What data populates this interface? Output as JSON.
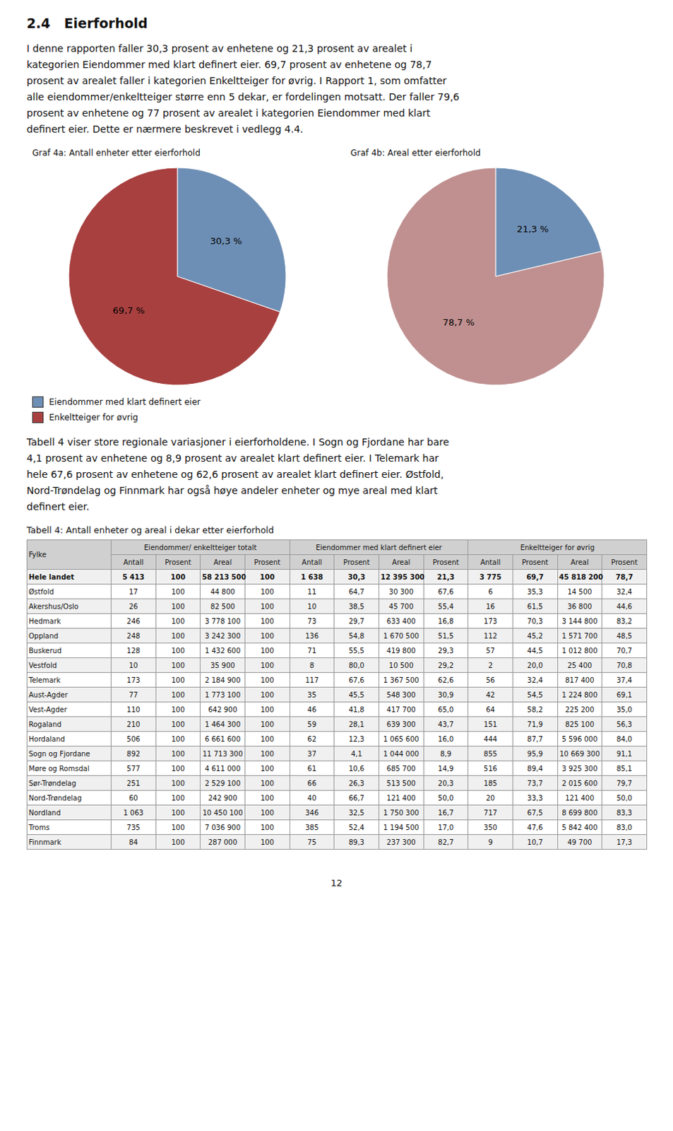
{
  "title": "2.4   Eierforhold",
  "intro_text": "I denne rapporten faller 30,3 prosent av enhetene og 21,3 prosent av arealet i\nkategorien Eiendommer med klart definert eier. 69,7 prosent av enhetene og 78,7\nprosent av arealet faller i kategorien Enkeltteiger for øvrig. I Rapport 1, som omfatter\nalle eiendommer/enkeltteiger større enn 5 dekar, er fordelingen motsatt. Der faller 79,6\nprosent av enhetene og 77 prosent av arealet i kategorien Eiendommer med klart\ndefinert eier. Dette er nærmere beskrevet i vedlegg 4.4.",
  "chart_data": [
    {
      "type": "pie",
      "title": "Graf 4a: Antall enheter etter eierforhold",
      "categories": [
        "Eiendommer med klart definert eier",
        "Enkeltteiger for øvrig"
      ],
      "values": [
        30.3,
        69.7
      ],
      "value_labels": [
        "30,3 %",
        "69,7 %"
      ],
      "colors": [
        "#6e8fb5",
        "#a84040"
      ],
      "data_labels": true,
      "legend": "lower left"
    },
    {
      "type": "pie",
      "title": "Graf 4b: Areal etter eierforhold",
      "categories": [
        "Eiendommer med klart definert eier",
        "Enkeltteiger for øvrig"
      ],
      "values": [
        21.3,
        78.7
      ],
      "value_labels": [
        "21,3 %",
        "78,7 %"
      ],
      "colors": [
        "#6e8fb5",
        "#c09090"
      ],
      "data_labels": true
    }
  ],
  "body_text": "Tabell 4 viser store regionale variasjoner i eierforholdene. I Sogn og Fjordane har bare\n4,1 prosent av enhetene og 8,9 prosent av arealet klart definert eier. I Telemark har\nhele 67,6 prosent av enhetene og 62,6 prosent av arealet klart definert eier. Østfold,\nNord-Trøndelag og Finnmark har også høye andeler enheter og mye areal med klart\ndefinert eier.",
  "table": {
    "title": "Tabell 4: Antall enheter og areal i dekar etter eierforhold",
    "stub_header": "Fylke",
    "group_headers": [
      "Eiendommer/ enkeltteiger totalt",
      "Eiendommer med klart definert eier",
      "Enkeltteiger for øvrig"
    ],
    "column_headers": [
      "Antall",
      "Prosent",
      "Areal",
      "Prosent",
      "Antall",
      "Prosent",
      "Areal",
      "Prosent",
      "Antall",
      "Prosent",
      "Areal",
      "Prosent"
    ],
    "rows": [
      [
        "Hele landet",
        "5 413",
        "100",
        "58 213 500",
        "100",
        "1 638",
        "30,3",
        "12 395 300",
        "21,3",
        "3 775",
        "69,7",
        "45 818 200",
        "78,7"
      ],
      [
        "Østfold",
        "17",
        "100",
        "44 800",
        "100",
        "11",
        "64,7",
        "30 300",
        "67,6",
        "6",
        "35,3",
        "14 500",
        "32,4"
      ],
      [
        "Akershus/Oslo",
        "26",
        "100",
        "82 500",
        "100",
        "10",
        "38,5",
        "45 700",
        "55,4",
        "16",
        "61,5",
        "36 800",
        "44,6"
      ],
      [
        "Hedmark",
        "246",
        "100",
        "3 778 100",
        "100",
        "73",
        "29,7",
        "633 400",
        "16,8",
        "173",
        "70,3",
        "3 144 800",
        "83,2"
      ],
      [
        "Oppland",
        "248",
        "100",
        "3 242 300",
        "100",
        "136",
        "54,8",
        "1 670 500",
        "51,5",
        "112",
        "45,2",
        "1 571 700",
        "48,5"
      ],
      [
        "Buskerud",
        "128",
        "100",
        "1 432 600",
        "100",
        "71",
        "55,5",
        "419 800",
        "29,3",
        "57",
        "44,5",
        "1 012 800",
        "70,7"
      ],
      [
        "Vestfold",
        "10",
        "100",
        "35 900",
        "100",
        "8",
        "80,0",
        "10 500",
        "29,2",
        "2",
        "20,0",
        "25 400",
        "70,8"
      ],
      [
        "Telemark",
        "173",
        "100",
        "2 184 900",
        "100",
        "117",
        "67,6",
        "1 367 500",
        "62,6",
        "56",
        "32,4",
        "817 400",
        "37,4"
      ],
      [
        "Aust-Agder",
        "77",
        "100",
        "1 773 100",
        "100",
        "35",
        "45,5",
        "548 300",
        "30,9",
        "42",
        "54,5",
        "1 224 800",
        "69,1"
      ],
      [
        "Vest-Agder",
        "110",
        "100",
        "642 900",
        "100",
        "46",
        "41,8",
        "417 700",
        "65,0",
        "64",
        "58,2",
        "225 200",
        "35,0"
      ],
      [
        "Rogaland",
        "210",
        "100",
        "1 464 300",
        "100",
        "59",
        "28,1",
        "639 300",
        "43,7",
        "151",
        "71,9",
        "825 100",
        "56,3"
      ],
      [
        "Hordaland",
        "506",
        "100",
        "6 661 600",
        "100",
        "62",
        "12,3",
        "1 065 600",
        "16,0",
        "444",
        "87,7",
        "5 596 000",
        "84,0"
      ],
      [
        "Sogn og Fjordane",
        "892",
        "100",
        "11 713 300",
        "100",
        "37",
        "4,1",
        "1 044 000",
        "8,9",
        "855",
        "95,9",
        "10 669 300",
        "91,1"
      ],
      [
        "Møre og Romsdal",
        "577",
        "100",
        "4 611 000",
        "100",
        "61",
        "10,6",
        "685 700",
        "14,9",
        "516",
        "89,4",
        "3 925 300",
        "85,1"
      ],
      [
        "Sør-Trøndelag",
        "251",
        "100",
        "2 529 100",
        "100",
        "66",
        "26,3",
        "513 500",
        "20,3",
        "185",
        "73,7",
        "2 015 600",
        "79,7"
      ],
      [
        "Nord-Trøndelag",
        "60",
        "100",
        "242 900",
        "100",
        "40",
        "66,7",
        "121 400",
        "50,0",
        "20",
        "33,3",
        "121 400",
        "50,0"
      ],
      [
        "Nordland",
        "1 063",
        "100",
        "10 450 100",
        "100",
        "346",
        "32,5",
        "1 750 300",
        "16,7",
        "717",
        "67,5",
        "8 699 800",
        "83,3"
      ],
      [
        "Troms",
        "735",
        "100",
        "7 036 900",
        "100",
        "385",
        "52,4",
        "1 194 500",
        "17,0",
        "350",
        "47,6",
        "5 842 400",
        "83,0"
      ],
      [
        "Finnmark",
        "84",
        "100",
        "287 000",
        "100",
        "75",
        "89,3",
        "237 300",
        "82,7",
        "9",
        "10,7",
        "49 700",
        "17,3"
      ]
    ]
  },
  "page_number": "12"
}
